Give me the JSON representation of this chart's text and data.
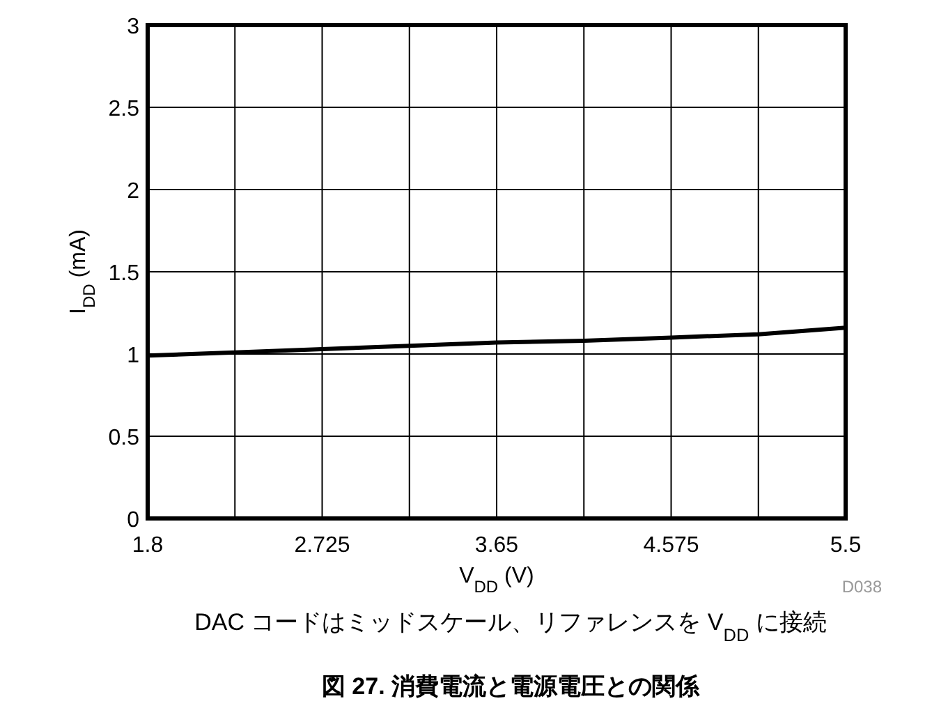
{
  "chart_data": {
    "type": "line",
    "title": "図 27. 消費電流と電源電圧との関係",
    "xlabel": "V$_{DD}$ (V)",
    "ylabel": "I$_{DD}$ (mA)",
    "annotations": [
      "D038",
      "DAC コードはミッドスケール、リファレンスを V$_{DD}$ に接続"
    ],
    "x": [
      1.8,
      2.2625,
      2.725,
      3.1875,
      3.65,
      4.1125,
      4.575,
      5.0375,
      5.5
    ],
    "series": [
      {
        "color": "#000000",
        "values": [
          0.99,
          1.01,
          1.03,
          1.05,
          1.07,
          1.08,
          1.1,
          1.12,
          1.16
        ]
      }
    ],
    "xlim": [
      1.8,
      5.5
    ],
    "xticks": [
      1.8,
      {
        "value": 2.2625,
        "label": null
      },
      2.725,
      {
        "value": 3.1875,
        "label": null
      },
      3.65,
      {
        "value": 4.1125,
        "label": null
      },
      4.575,
      {
        "value": 5.0375,
        "label": null
      },
      5.5
    ],
    "ylim": [
      0,
      3
    ],
    "yticks": [
      0,
      0.5,
      1,
      1.5,
      2,
      2.5,
      3
    ],
    "grid": true,
    "marker": "none",
    "line_style": "solid"
  }
}
